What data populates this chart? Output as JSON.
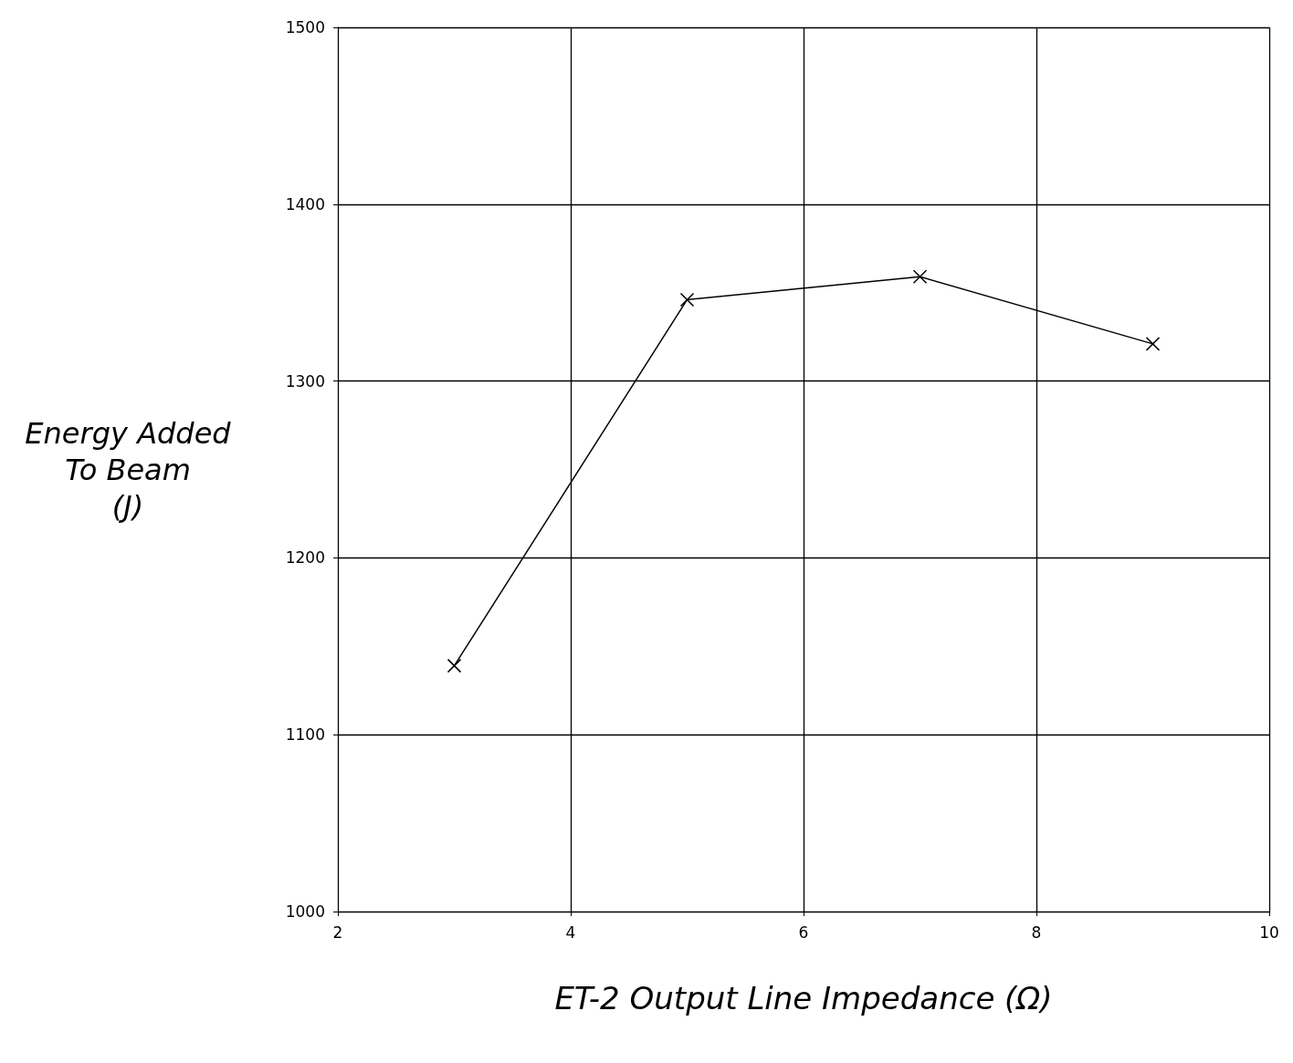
{
  "chart_data": {
    "type": "line",
    "xlabel": "ET-2 Output Line Impedance (Ω)",
    "ylabel": "Energy Added\nTo Beam\n(J)",
    "x": [
      3,
      5,
      7,
      9
    ],
    "series": [
      {
        "color": "#000000",
        "values": [
          1139,
          1346,
          1359,
          1321
        ]
      }
    ],
    "xlim": [
      2,
      10
    ],
    "xticks": [
      2,
      4,
      6,
      8,
      10
    ],
    "ylim": [
      1000,
      1500
    ],
    "yticks": [
      1000,
      1100,
      1200,
      1300,
      1400,
      1500
    ],
    "grid": true,
    "marker": "cross",
    "line_style": "solid"
  }
}
